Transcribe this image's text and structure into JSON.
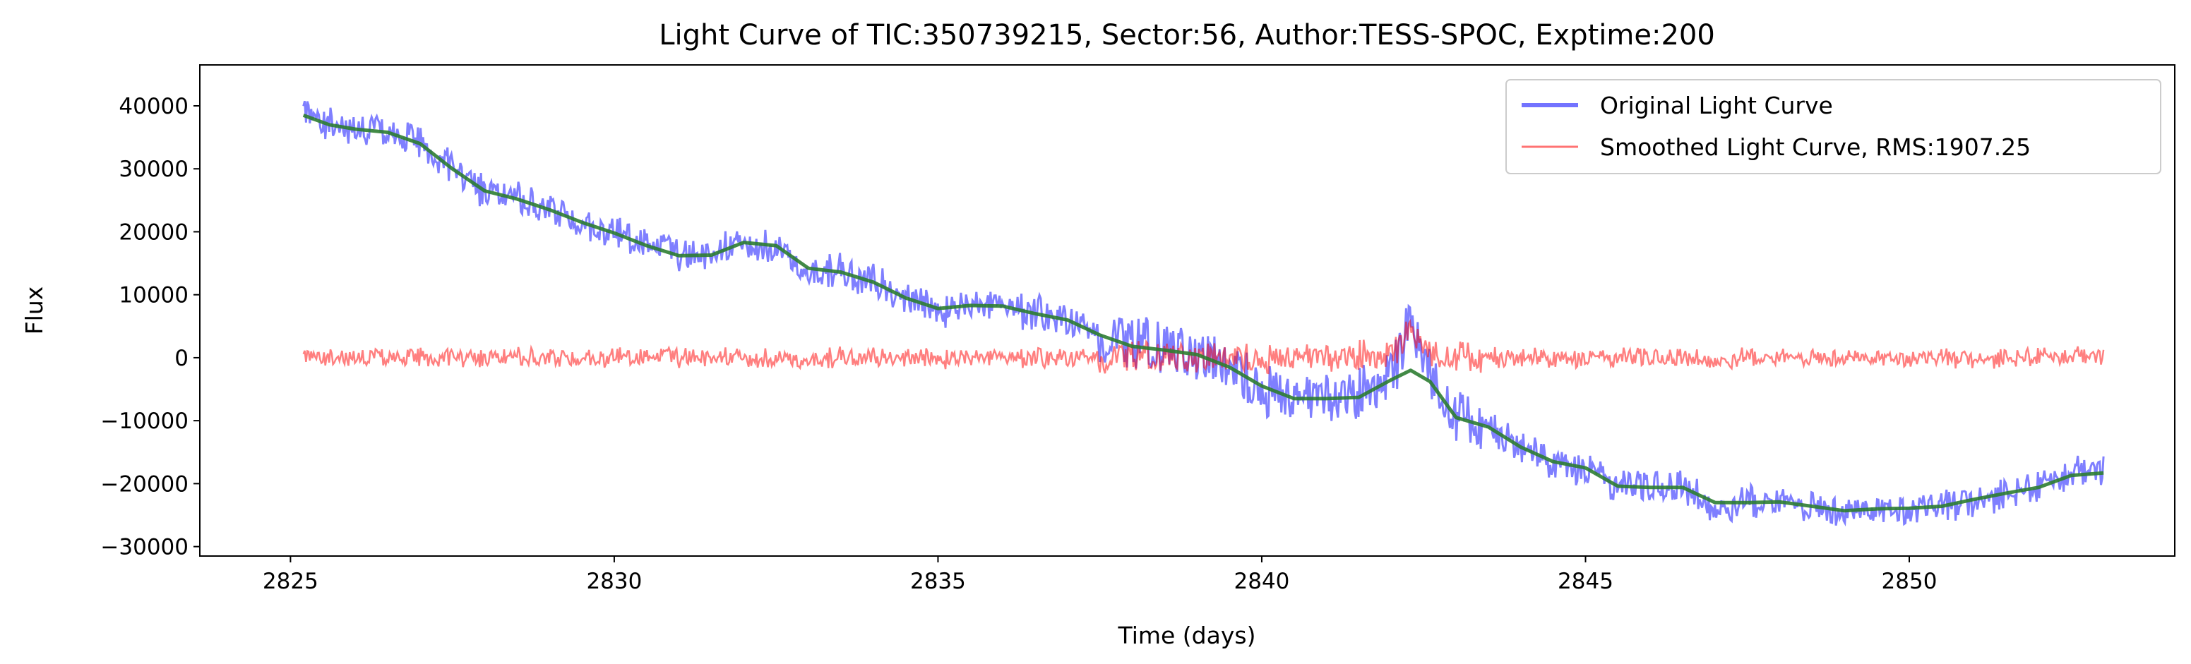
{
  "chart_data": {
    "type": "line",
    "title": "Light Curve of TIC:350739215, Sector:56, Author:TESS-SPOC, Exptime:200",
    "xlabel": "Time (days)",
    "ylabel": "Flux",
    "xlim": [
      2823.6,
      2854.1
    ],
    "ylim": [
      -31500,
      46500
    ],
    "xticks": [
      2825,
      2830,
      2835,
      2840,
      2845,
      2850
    ],
    "yticks": [
      -30000,
      -20000,
      -10000,
      0,
      10000,
      20000,
      30000,
      40000
    ],
    "tick_labels": {
      "x": [
        "2825",
        "2830",
        "2835",
        "2840",
        "2845",
        "2850"
      ],
      "y": [
        "−30000",
        "−20000",
        "−10000",
        "0",
        "10000",
        "20000",
        "30000",
        "40000"
      ]
    },
    "grid": false,
    "legend_position": "top-right",
    "colors": {
      "original": "#0000ff",
      "smoothed": "#ff0000",
      "trend": "#2e7d32"
    },
    "legend": [
      {
        "label": "Original Light Curve",
        "color": "#0000ff"
      },
      {
        "label": "Smoothed Light Curve, RMS:1907.25",
        "color": "#ff0000"
      }
    ],
    "series": [
      {
        "name": "Original Light Curve",
        "x": [
          2825.2,
          2825.6,
          2826.0,
          2826.5,
          2827.0,
          2827.5,
          2828.0,
          2828.5,
          2829.0,
          2829.5,
          2830.0,
          2830.5,
          2831.0,
          2831.5,
          2832.0,
          2832.5,
          2833.0,
          2833.5,
          2834.0,
          2834.5,
          2835.0,
          2835.5,
          2836.0,
          2836.5,
          2837.0,
          2837.5,
          2838.0,
          2838.5,
          2839.0,
          2839.5,
          2840.0,
          2840.5,
          2841.0,
          2841.5,
          2842.0,
          2842.3,
          2842.6,
          2843.0,
          2843.5,
          2844.0,
          2844.5,
          2845.0,
          2845.5,
          2846.0,
          2846.5,
          2847.0,
          2847.5,
          2848.0,
          2848.5,
          2849.0,
          2849.5,
          2850.0,
          2850.5,
          2851.0,
          2851.5,
          2852.0,
          2852.5,
          2853.0
        ],
        "y": [
          39000,
          37000,
          36500,
          36000,
          34500,
          30000,
          26500,
          25500,
          23500,
          21500,
          20000,
          18000,
          16000,
          16500,
          18500,
          17000,
          14000,
          14000,
          12000,
          9500,
          7500,
          8500,
          8000,
          7000,
          6000,
          4000,
          2500,
          1500,
          500,
          -1500,
          -4500,
          -6500,
          -6500,
          -6000,
          -3000,
          6000,
          -3500,
          -9500,
          -11000,
          -14000,
          -16500,
          -18000,
          -20500,
          -20500,
          -20500,
          -24000,
          -23000,
          -23000,
          -23500,
          -24500,
          -24000,
          -24000,
          -23500,
          -22500,
          -21500,
          -20500,
          -18500,
          -18000
        ]
      },
      {
        "name": "Smoothed Light Curve, RMS:1907.25",
        "x": [
          2825.2,
          2853.1
        ],
        "y": [
          0,
          0
        ]
      },
      {
        "x": [
          2825.2,
          2825.6,
          2826.0,
          2826.5,
          2827.0,
          2827.5,
          2828.0,
          2828.5,
          2829.0,
          2829.5,
          2830.0,
          2830.5,
          2831.0,
          2831.5,
          2832.0,
          2832.5,
          2833.0,
          2833.5,
          2834.0,
          2834.5,
          2835.0,
          2835.5,
          2836.0,
          2836.5,
          2837.0,
          2837.5,
          2838.0,
          2838.5,
          2839.0,
          2839.5,
          2840.0,
          2840.5,
          2841.0,
          2841.5,
          2842.0,
          2842.3,
          2842.6,
          2843.0,
          2843.5,
          2844.0,
          2844.5,
          2845.0,
          2845.5,
          2846.0,
          2846.5,
          2847.0,
          2847.5,
          2848.0,
          2848.5,
          2849.0,
          2849.5,
          2850.0,
          2850.5,
          2851.0,
          2851.5,
          2852.0,
          2852.5,
          2853.0
        ],
        "y": [
          38500,
          37000,
          36300,
          35800,
          34000,
          30000,
          26500,
          25200,
          23500,
          21500,
          19800,
          17800,
          16200,
          16300,
          18300,
          17800,
          14200,
          13600,
          12000,
          9500,
          7800,
          8300,
          8200,
          7000,
          6000,
          3600,
          1800,
          1200,
          500,
          -1500,
          -4500,
          -6500,
          -6500,
          -6300,
          -3500,
          -2000,
          -3800,
          -9500,
          -11000,
          -14200,
          -16500,
          -17500,
          -20400,
          -20600,
          -20600,
          -23000,
          -23000,
          -22900,
          -23600,
          -24300,
          -24000,
          -23900,
          -23600,
          -22500,
          -21500,
          -20600,
          -18700,
          -18300
        ]
      }
    ]
  }
}
